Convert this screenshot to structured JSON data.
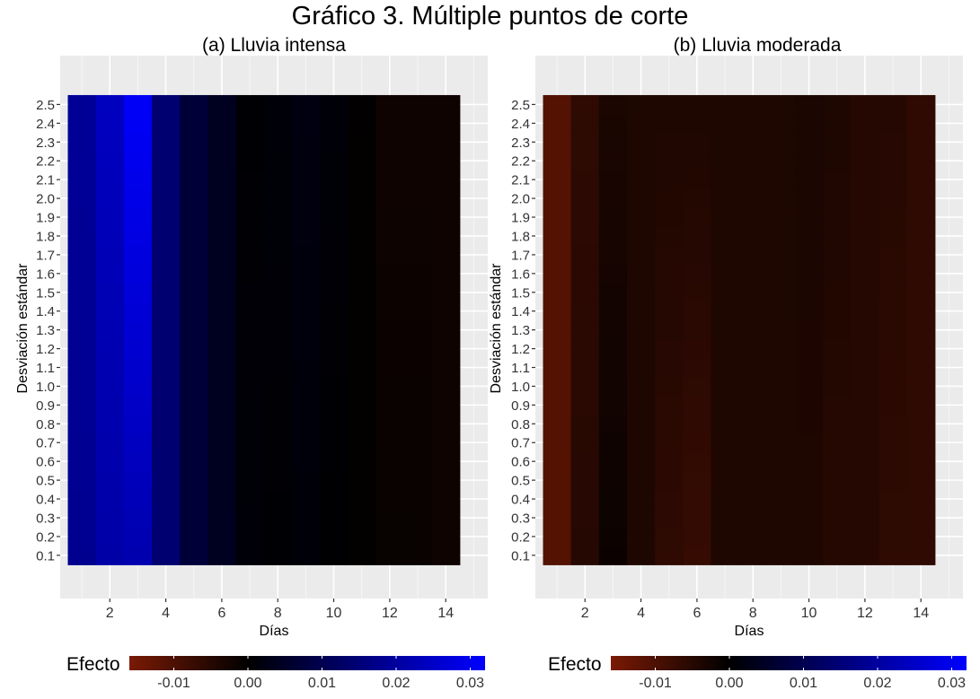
{
  "title": "Gráfico 3. Múltiple puntos de corte",
  "chart_data": [
    {
      "type": "heatmap",
      "subtitle": "(a) Lluvia intensa",
      "xlabel": "Días",
      "ylabel": "Desviación estándar",
      "x_ticks": [
        "2",
        "4",
        "6",
        "8",
        "10",
        "12",
        "14"
      ],
      "y_ticks": [
        "0.1",
        "0.2",
        "0.3",
        "0.4",
        "0.5",
        "0.6",
        "0.7",
        "0.8",
        "0.9",
        "1.0",
        "1.1",
        "1.2",
        "1.3",
        "1.4",
        "1.5",
        "1.6",
        "1.7",
        "1.8",
        "1.9",
        "2.0",
        "2.1",
        "2.2",
        "2.3",
        "2.4",
        "2.5"
      ],
      "x": [
        1,
        2,
        3,
        4,
        5,
        6,
        7,
        8,
        9,
        10,
        11,
        12,
        13,
        14
      ],
      "y": [
        0.1,
        0.2,
        0.3,
        0.4,
        0.5,
        0.6,
        0.7,
        0.8,
        0.9,
        1.0,
        1.1,
        1.2,
        1.3,
        1.4,
        1.5,
        1.6,
        1.7,
        1.8,
        1.9,
        2.0,
        2.1,
        2.2,
        2.3,
        2.4,
        2.5
      ],
      "grid": true,
      "legend": {
        "title": "Efecto",
        "position": "bottom",
        "range": [
          -0.016,
          0.032
        ],
        "ticks": [
          "-0.01",
          "0.00",
          "0.01",
          "0.02",
          "0.03"
        ],
        "tick_values": [
          -0.01,
          0.0,
          0.01,
          0.02,
          0.03
        ],
        "low_color": "#7a1a05",
        "mid_color": "#000000",
        "high_color": "#0000ff"
      },
      "column_values_low": [
        0.018,
        0.021,
        0.022,
        0.014,
        0.007,
        0.004,
        0.001,
        0.0005,
        0.001,
        0.0003,
        -0.0004,
        -0.001,
        -0.001,
        -0.002
      ],
      "column_values_high": [
        0.019,
        0.024,
        0.031,
        0.014,
        0.007,
        0.004,
        0.0005,
        0.001,
        0.002,
        0.001,
        -0.0003,
        -0.002,
        -0.002,
        -0.002
      ]
    },
    {
      "type": "heatmap",
      "subtitle": "(b) Lluvia moderada",
      "xlabel": "Días",
      "ylabel": "Desviación estándar",
      "x_ticks": [
        "2",
        "4",
        "6",
        "8",
        "10",
        "12",
        "14"
      ],
      "y_ticks": [
        "0.1",
        "0.2",
        "0.3",
        "0.4",
        "0.5",
        "0.6",
        "0.7",
        "0.8",
        "0.9",
        "1.0",
        "1.1",
        "1.2",
        "1.3",
        "1.4",
        "1.5",
        "1.6",
        "1.7",
        "1.8",
        "1.9",
        "2.0",
        "2.1",
        "2.2",
        "2.3",
        "2.4",
        "2.5"
      ],
      "x": [
        1,
        2,
        3,
        4,
        5,
        6,
        7,
        8,
        9,
        10,
        11,
        12,
        13,
        14
      ],
      "y": [
        0.1,
        0.2,
        0.3,
        0.4,
        0.5,
        0.6,
        0.7,
        0.8,
        0.9,
        1.0,
        1.1,
        1.2,
        1.3,
        1.4,
        1.5,
        1.6,
        1.7,
        1.8,
        1.9,
        2.0,
        2.1,
        2.2,
        2.3,
        2.4,
        2.5
      ],
      "grid": true,
      "legend": {
        "title": "Efecto",
        "position": "bottom",
        "range": [
          -0.016,
          0.032
        ],
        "ticks": [
          "-0.01",
          "0.00",
          "0.01",
          "0.02",
          "0.03"
        ],
        "tick_values": [
          -0.01,
          0.0,
          0.01,
          0.02,
          0.03
        ],
        "low_color": "#7a1a05",
        "mid_color": "#000000",
        "high_color": "#0000ff"
      },
      "column_values_low": [
        -0.011,
        -0.005,
        -0.0015,
        -0.004,
        -0.006,
        -0.007,
        -0.004,
        -0.004,
        -0.004,
        -0.004,
        -0.005,
        -0.005,
        -0.006,
        -0.006
      ],
      "column_values_high": [
        -0.011,
        -0.006,
        -0.0035,
        -0.004,
        -0.004,
        -0.004,
        -0.004,
        -0.004,
        -0.004,
        -0.0035,
        -0.004,
        -0.005,
        -0.005,
        -0.006
      ]
    }
  ]
}
